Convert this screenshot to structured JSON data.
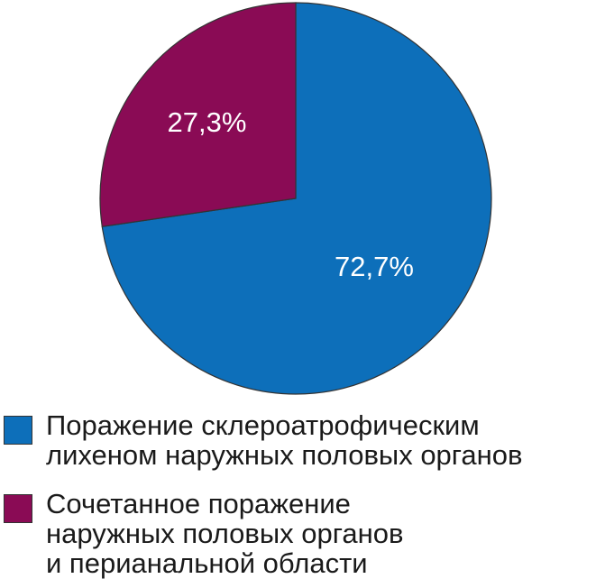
{
  "chart_data": {
    "type": "pie",
    "slices": [
      {
        "label": "Поражение склероатрофическим лихеном наружных половых органов",
        "value": 72.7,
        "value_label": "72,7%",
        "color": "#0d6fba"
      },
      {
        "label": "Сочетанное поражение наружных половых органов и перианальной области",
        "value": 27.3,
        "value_label": "27,3%",
        "color": "#8a0b55"
      }
    ],
    "start": "top (12 o'clock)",
    "direction": "clockwise",
    "legend_position": "bottom"
  },
  "legend": {
    "items": [
      {
        "lines": [
          "Поражение склероатрофическим",
          "лихеном наружных половых органов"
        ],
        "color": "#0d6fba"
      },
      {
        "lines": [
          "Сочетанное поражение",
          "наружных половых органов",
          "и перианальной области"
        ],
        "color": "#8a0b55"
      }
    ]
  }
}
